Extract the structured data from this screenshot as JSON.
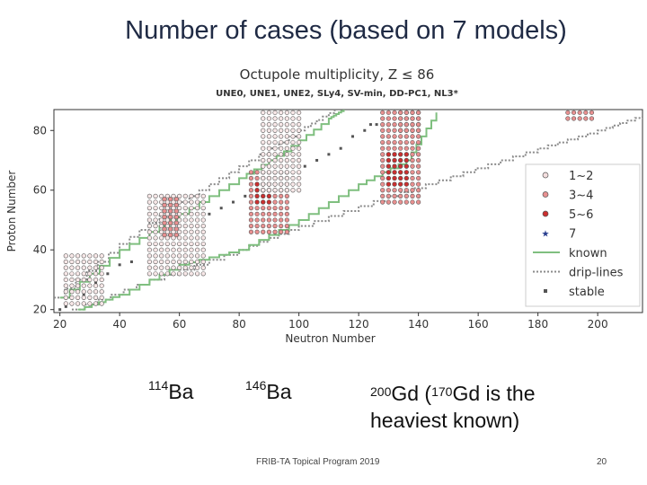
{
  "slide": {
    "title": "Number of cases (based on 7 models)",
    "footer": "FRIB-TA Topical Program 2019",
    "page_number": "20"
  },
  "labels": {
    "ba114": {
      "mass": "114",
      "element": "Ba"
    },
    "ba146": {
      "mass": "146",
      "element": "Ba"
    },
    "gd": {
      "mass": "200",
      "element": "Gd",
      "note_open": " (",
      "mass2": "170",
      "element2": "Gd",
      "note_rest": " is the",
      "line2": "heaviest known)"
    }
  },
  "chart_data": {
    "type": "scatter",
    "title": "Octupole multiplicity, Z ≤ 86",
    "subtitle": "UNE0, UNE1, UNE2, SLy4, SV-min, DD-PC1, NL3*",
    "xlabel": "Neutron Number",
    "ylabel": "Proton Number",
    "xlim": [
      18,
      215
    ],
    "ylim": [
      19,
      87
    ],
    "xticks": [
      20,
      40,
      60,
      80,
      100,
      120,
      140,
      160,
      180,
      200
    ],
    "yticks": [
      20,
      40,
      60,
      80
    ],
    "legend_position": "right",
    "legend": [
      {
        "label": "1~2",
        "marker": "circle",
        "color": "#f4dede"
      },
      {
        "label": "3~4",
        "marker": "circle",
        "color": "#e89090"
      },
      {
        "label": "5~6",
        "marker": "circle",
        "color": "#cc2f2f"
      },
      {
        "label": "7",
        "marker": "star",
        "color": "#2a3f8f"
      },
      {
        "label": "known",
        "marker": "line",
        "color": "#7fbf7f"
      },
      {
        "label": "drip-lines",
        "marker": "dotted",
        "color": "#8a8a8a"
      },
      {
        "label": "stable",
        "marker": "square",
        "color": "#555555"
      }
    ],
    "octupole_regions": [
      {
        "name": "light",
        "N": [
          22,
          35
        ],
        "Z": [
          22,
          38
        ],
        "level": 1
      },
      {
        "name": "Ba-light",
        "N": [
          50,
          68
        ],
        "Z": [
          32,
          58
        ],
        "level": 1
      },
      {
        "name": "Ba-light-core",
        "N": [
          55,
          60
        ],
        "Z": [
          45,
          57
        ],
        "level": 2
      },
      {
        "name": "Ba-heavy",
        "N": [
          84,
          96
        ],
        "Z": [
          46,
          66
        ],
        "level": 2
      },
      {
        "name": "Ba-heavy-core",
        "N": [
          86,
          90
        ],
        "Z": [
          56,
          62
        ],
        "level": 3
      },
      {
        "name": "rare-earth",
        "N": [
          88,
          100
        ],
        "Z": [
          60,
          86
        ],
        "level": 1
      },
      {
        "name": "Gd-region",
        "N": [
          128,
          140
        ],
        "Z": [
          56,
          86
        ],
        "level": 2
      },
      {
        "name": "Gd-core",
        "N": [
          130,
          136
        ],
        "Z": [
          62,
          72
        ],
        "level": 3
      },
      {
        "name": "actinide",
        "N": [
          134,
          140
        ],
        "Z": [
          80,
          86
        ],
        "level": 2
      },
      {
        "name": "far",
        "N": [
          190,
          198
        ],
        "Z": [
          84,
          86
        ],
        "level": 2
      }
    ],
    "known_edges": [
      {
        "lower": [
          [
            26,
            20
          ],
          [
            40,
            25
          ],
          [
            60,
            35
          ],
          [
            80,
            40
          ],
          [
            100,
            50
          ],
          [
            120,
            62
          ],
          [
            136,
            70
          ],
          [
            146,
            86
          ]
        ]
      },
      {
        "upper": [
          [
            20,
            24
          ],
          [
            40,
            40
          ],
          [
            60,
            52
          ],
          [
            80,
            64
          ],
          [
            95,
            73
          ],
          [
            110,
            84
          ],
          [
            115,
            87
          ]
        ]
      }
    ],
    "drip_lines": [
      {
        "neutron": [
          [
            24,
            20
          ],
          [
            50,
            30
          ],
          [
            80,
            40
          ],
          [
            100,
            48
          ],
          [
            130,
            58
          ],
          [
            155,
            66
          ],
          [
            180,
            74
          ],
          [
            200,
            80
          ],
          [
            215,
            85
          ]
        ]
      },
      {
        "proton": [
          [
            18,
            24
          ],
          [
            40,
            42
          ],
          [
            60,
            56
          ],
          [
            80,
            68
          ],
          [
            100,
            80
          ],
          [
            112,
            87
          ]
        ]
      }
    ],
    "stable": [
      [
        20,
        20
      ],
      [
        22,
        21
      ],
      [
        26,
        24
      ],
      [
        28,
        25
      ],
      [
        30,
        28
      ],
      [
        32,
        29
      ],
      [
        36,
        32
      ],
      [
        40,
        35
      ],
      [
        44,
        36
      ],
      [
        50,
        40
      ],
      [
        54,
        42
      ],
      [
        58,
        46
      ],
      [
        62,
        48
      ],
      [
        66,
        50
      ],
      [
        70,
        52
      ],
      [
        74,
        54
      ],
      [
        78,
        56
      ],
      [
        82,
        58
      ],
      [
        86,
        60
      ],
      [
        90,
        62
      ],
      [
        94,
        64
      ],
      [
        98,
        66
      ],
      [
        102,
        68
      ],
      [
        106,
        70
      ],
      [
        110,
        72
      ],
      [
        114,
        74
      ],
      [
        118,
        78
      ],
      [
        122,
        80
      ],
      [
        124,
        82
      ],
      [
        126,
        82
      ]
    ]
  }
}
